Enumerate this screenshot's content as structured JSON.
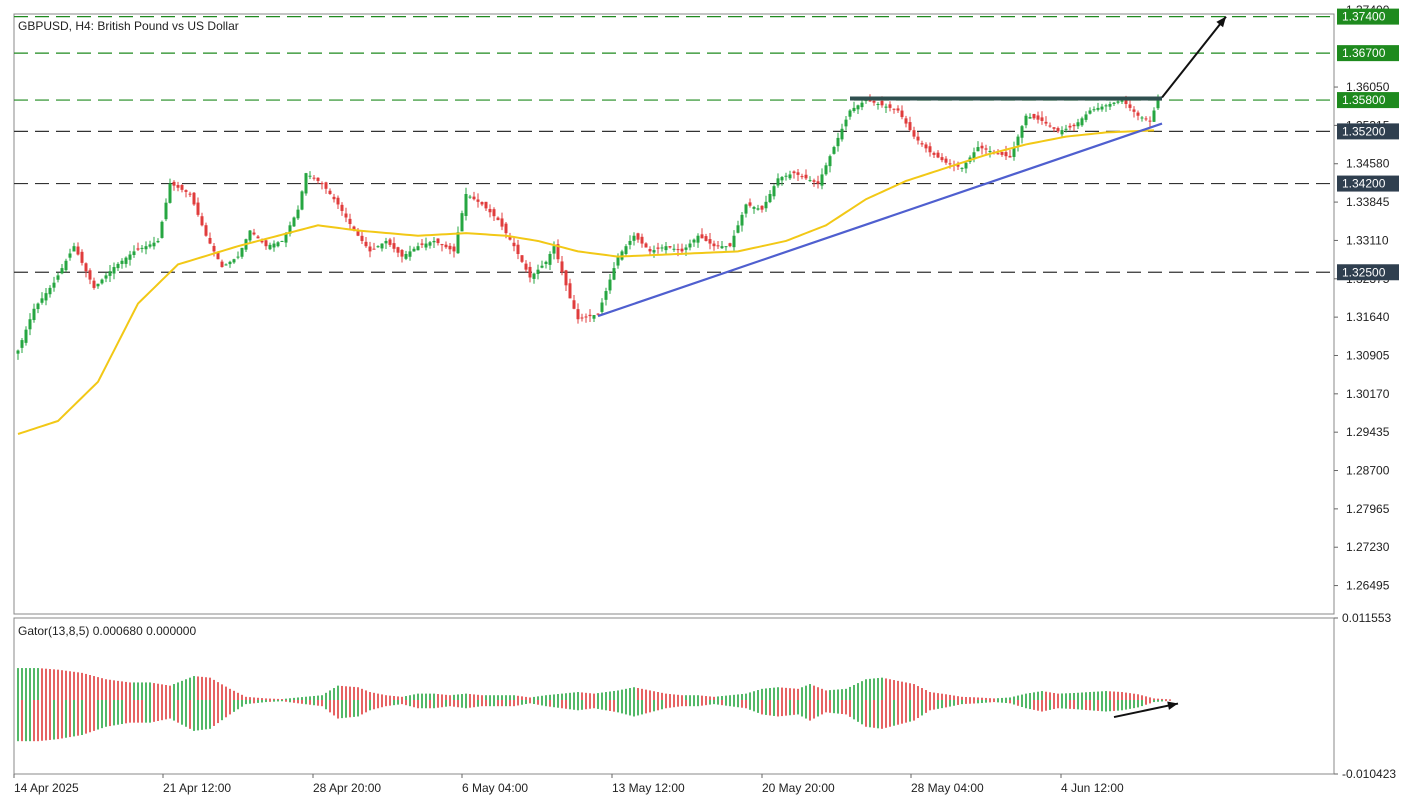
{
  "chart_data": [
    {
      "type": "candlestick",
      "title": "GBPUSD, H4:  British Pound vs US Dollar",
      "ylim": [
        1.2595,
        1.3745
      ],
      "y_ticks": [
        "1.36050",
        "1.35315",
        "1.34580",
        "1.33845",
        "1.33110",
        "1.32375",
        "1.31640",
        "1.30905",
        "1.30170",
        "1.29435",
        "1.28700",
        "1.27965",
        "1.27230",
        "1.26495"
      ],
      "y_top_tick": "1.37400",
      "x_labels": [
        "14 Apr 2025",
        "21 Apr 12:00",
        "28 Apr 20:00",
        "6 May 04:00",
        "13 May 12:00",
        "20 May 20:00",
        "28 May 04:00",
        "4 Jun 12:00"
      ],
      "levels": [
        {
          "label": "1.37400",
          "value": 1.374,
          "badge_color": "#1e8a1e",
          "line_color": "#1e8a1e"
        },
        {
          "label": "1.36700",
          "value": 1.367,
          "badge_color": "#1e8a1e",
          "line_color": "#1e8a1e"
        },
        {
          "label": "1.35800",
          "value": 1.358,
          "badge_color": "#1e8a1e",
          "line_color": "#1e8a1e"
        },
        {
          "label": "1.35200",
          "value": 1.352,
          "badge_color": "#2f3f4f",
          "line_color": "#333333"
        },
        {
          "label": "1.34200",
          "value": 1.342,
          "badge_color": "#2f3f4f",
          "line_color": "#333333"
        },
        {
          "label": "1.32500",
          "value": 1.325,
          "badge_color": "#2f3f4f",
          "line_color": "#333333"
        }
      ],
      "price_path": [
        [
          0,
          1.31
        ],
        [
          4,
          1.318
        ],
        [
          9,
          1.323
        ],
        [
          14,
          1.33
        ],
        [
          19,
          1.322
        ],
        [
          24,
          1.326
        ],
        [
          29,
          1.329
        ],
        [
          35,
          1.331
        ],
        [
          38,
          1.342
        ],
        [
          43,
          1.34
        ],
        [
          47,
          1.332
        ],
        [
          51,
          1.326
        ],
        [
          55,
          1.328
        ],
        [
          58,
          1.333
        ],
        [
          62,
          1.33
        ],
        [
          66,
          1.331
        ],
        [
          70,
          1.337
        ],
        [
          72,
          1.344
        ],
        [
          76,
          1.342
        ],
        [
          80,
          1.338
        ],
        [
          84,
          1.333
        ],
        [
          88,
          1.329
        ],
        [
          92,
          1.331
        ],
        [
          96,
          1.328
        ],
        [
          100,
          1.33
        ],
        [
          104,
          1.331
        ],
        [
          109,
          1.329
        ],
        [
          112,
          1.34
        ],
        [
          116,
          1.338
        ],
        [
          120,
          1.335
        ],
        [
          124,
          1.33
        ],
        [
          128,
          1.324
        ],
        [
          132,
          1.327
        ],
        [
          134,
          1.33
        ],
        [
          138,
          1.32
        ],
        [
          140,
          1.316
        ],
        [
          145,
          1.317
        ],
        [
          150,
          1.328
        ],
        [
          154,
          1.332
        ],
        [
          158,
          1.329
        ],
        [
          162,
          1.33
        ],
        [
          166,
          1.329
        ],
        [
          170,
          1.332
        ],
        [
          174,
          1.33
        ],
        [
          178,
          1.33
        ],
        [
          182,
          1.338
        ],
        [
          186,
          1.337
        ],
        [
          190,
          1.343
        ],
        [
          194,
          1.344
        ],
        [
          200,
          1.342
        ],
        [
          204,
          1.349
        ],
        [
          208,
          1.356
        ],
        [
          212,
          1.358
        ],
        [
          216,
          1.357
        ],
        [
          220,
          1.356
        ],
        [
          224,
          1.351
        ],
        [
          228,
          1.348
        ],
        [
          232,
          1.346
        ],
        [
          236,
          1.345
        ],
        [
          240,
          1.349
        ],
        [
          244,
          1.348
        ],
        [
          248,
          1.347
        ],
        [
          252,
          1.355
        ],
        [
          256,
          1.354
        ],
        [
          260,
          1.352
        ],
        [
          264,
          1.353
        ],
        [
          268,
          1.356
        ],
        [
          272,
          1.357
        ],
        [
          276,
          1.358
        ],
        [
          280,
          1.355
        ],
        [
          283,
          1.354
        ],
        [
          285,
          1.358
        ]
      ],
      "ma_path": [
        [
          0,
          1.294
        ],
        [
          10,
          1.2965
        ],
        [
          20,
          1.304
        ],
        [
          30,
          1.319
        ],
        [
          40,
          1.3265
        ],
        [
          55,
          1.33
        ],
        [
          65,
          1.332
        ],
        [
          75,
          1.334
        ],
        [
          85,
          1.333
        ],
        [
          100,
          1.332
        ],
        [
          112,
          1.3325
        ],
        [
          122,
          1.332
        ],
        [
          130,
          1.331
        ],
        [
          140,
          1.329
        ],
        [
          150,
          1.328
        ],
        [
          165,
          1.3285
        ],
        [
          180,
          1.329
        ],
        [
          192,
          1.331
        ],
        [
          202,
          1.334
        ],
        [
          212,
          1.339
        ],
        [
          222,
          1.3425
        ],
        [
          232,
          1.345
        ],
        [
          242,
          1.3475
        ],
        [
          252,
          1.3495
        ],
        [
          262,
          1.351
        ],
        [
          272,
          1.3518
        ],
        [
          284,
          1.3522
        ]
      ],
      "trendline": [
        [
          145,
          1.3166
        ],
        [
          286,
          1.3535
        ]
      ],
      "resistance_segment": [
        [
          208,
          1.3583
        ],
        [
          286,
          1.3583
        ]
      ],
      "breakout_arrow": [
        [
          286,
          1.3585
        ],
        [
          302,
          1.374
        ]
      ],
      "total_bars": 330,
      "colors": {
        "bull": "#26a641",
        "bear": "#e03c3c",
        "ma": "#f2c816",
        "trend": "#4f5fcf",
        "resistance": "#2f4f4f"
      }
    },
    {
      "type": "histogram",
      "title": "Gator(13,8,5) 0.000680 0.000000",
      "ylim": [
        -0.010423,
        0.011553
      ],
      "y_ticks": [
        "0.011553",
        "-0.010423"
      ],
      "envelope": [
        [
          0,
          1.0
        ],
        [
          5,
          1.0
        ],
        [
          10,
          0.95
        ],
        [
          16,
          0.85
        ],
        [
          22,
          0.65
        ],
        [
          28,
          0.55
        ],
        [
          33,
          0.55
        ],
        [
          38,
          0.45
        ],
        [
          44,
          0.75
        ],
        [
          48,
          0.7
        ],
        [
          53,
          0.35
        ],
        [
          57,
          0.1
        ],
        [
          62,
          0.05
        ],
        [
          66,
          0.03
        ],
        [
          70,
          0.08
        ],
        [
          76,
          0.15
        ],
        [
          80,
          0.45
        ],
        [
          85,
          0.4
        ],
        [
          88,
          0.25
        ],
        [
          92,
          0.15
        ],
        [
          96,
          0.1
        ],
        [
          100,
          0.2
        ],
        [
          104,
          0.2
        ],
        [
          108,
          0.15
        ],
        [
          112,
          0.2
        ],
        [
          116,
          0.15
        ],
        [
          120,
          0.15
        ],
        [
          124,
          0.15
        ],
        [
          128,
          0.08
        ],
        [
          132,
          0.15
        ],
        [
          136,
          0.2
        ],
        [
          140,
          0.25
        ],
        [
          144,
          0.2
        ],
        [
          150,
          0.3
        ],
        [
          154,
          0.4
        ],
        [
          158,
          0.3
        ],
        [
          162,
          0.2
        ],
        [
          166,
          0.15
        ],
        [
          170,
          0.15
        ],
        [
          174,
          0.1
        ],
        [
          178,
          0.15
        ],
        [
          182,
          0.2
        ],
        [
          186,
          0.35
        ],
        [
          190,
          0.4
        ],
        [
          195,
          0.35
        ],
        [
          198,
          0.5
        ],
        [
          202,
          0.3
        ],
        [
          207,
          0.35
        ],
        [
          212,
          0.65
        ],
        [
          216,
          0.7
        ],
        [
          220,
          0.6
        ],
        [
          224,
          0.5
        ],
        [
          228,
          0.25
        ],
        [
          232,
          0.18
        ],
        [
          236,
          0.1
        ],
        [
          240,
          0.08
        ],
        [
          244,
          0.05
        ],
        [
          248,
          0.08
        ],
        [
          252,
          0.2
        ],
        [
          256,
          0.28
        ],
        [
          260,
          0.2
        ],
        [
          264,
          0.22
        ],
        [
          268,
          0.25
        ],
        [
          272,
          0.28
        ],
        [
          276,
          0.25
        ],
        [
          280,
          0.18
        ],
        [
          284,
          0.05
        ],
        [
          288,
          0.02
        ]
      ],
      "arrow": [
        [
          274,
          -0.0024
        ],
        [
          290,
          -0.0005
        ]
      ],
      "colors": {
        "up": "#26a641",
        "down": "#e03c3c"
      }
    }
  ]
}
